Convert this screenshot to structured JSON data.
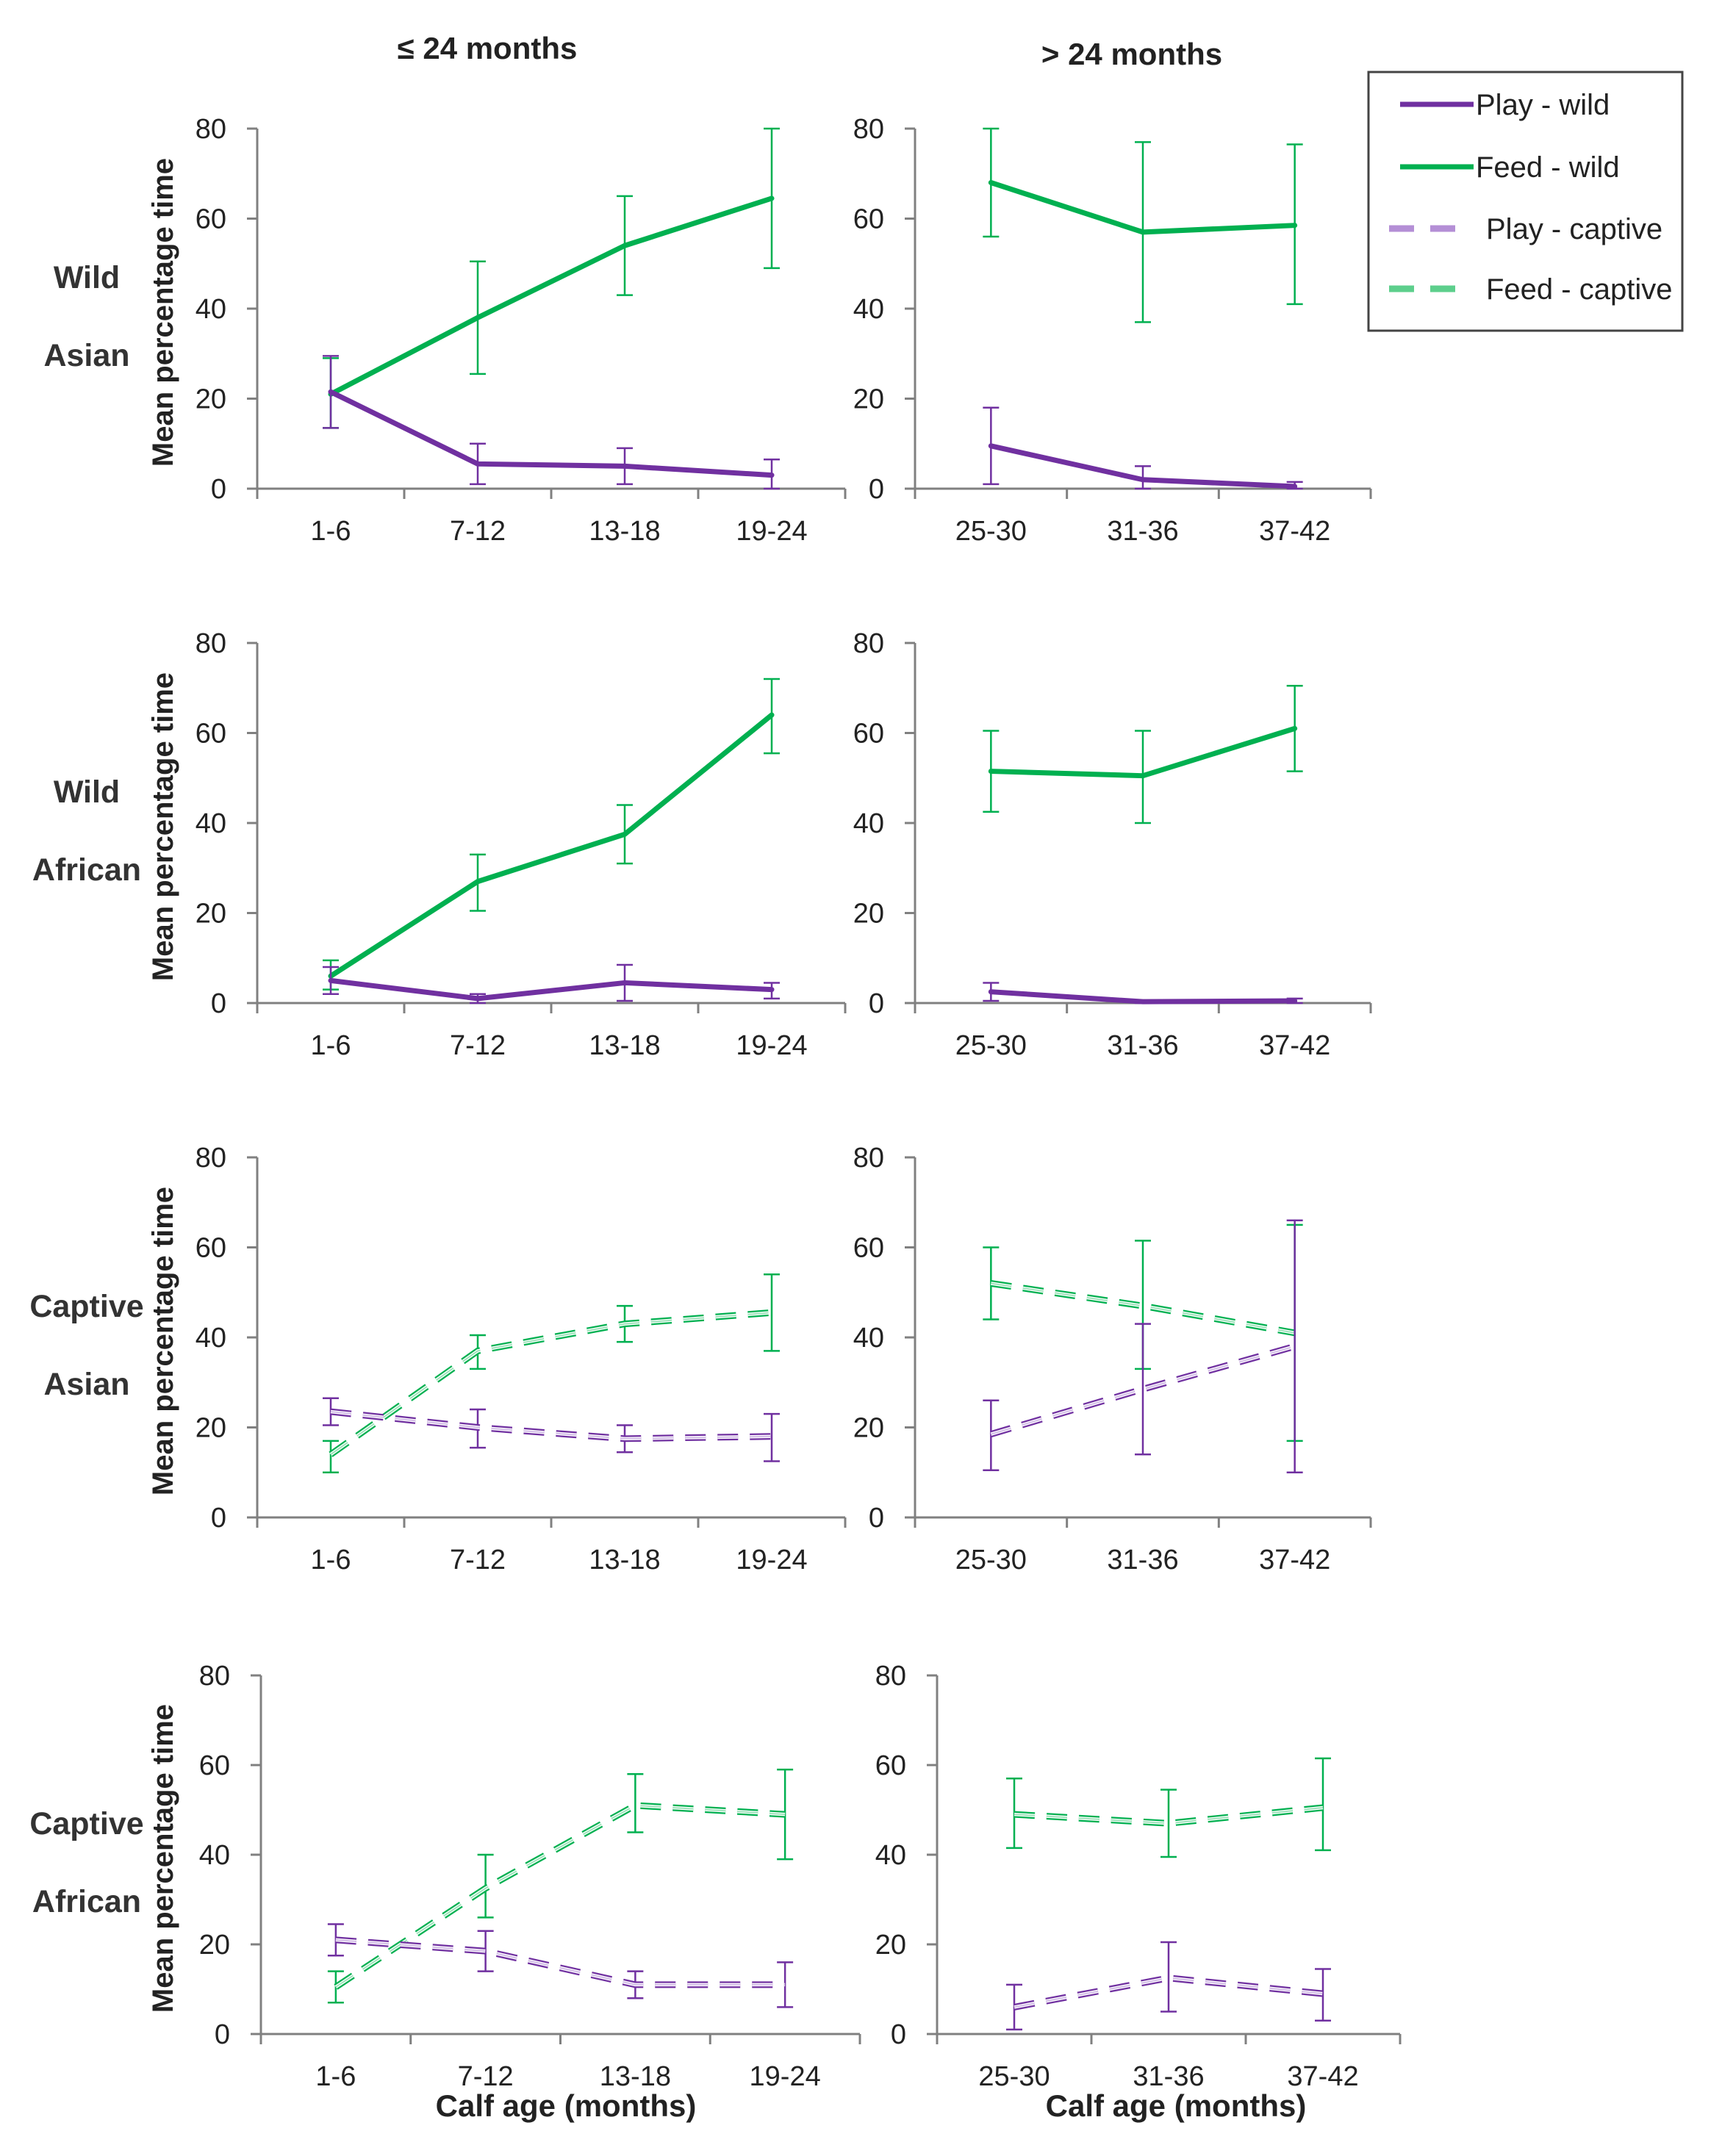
{
  "chart_data": {
    "type": "line",
    "column_headers": [
      "≤ 24 months",
      "> 24 months"
    ],
    "ylabel": "Mean percentage time",
    "xlabel": "Calf age (months)",
    "ylim": [
      0,
      80
    ],
    "yticks": [
      "0",
      "20",
      "40",
      "60",
      "80"
    ],
    "colors": {
      "play": "#7030a0",
      "feed": "#00b050",
      "play_captive": "#b48fd6",
      "feed_captive": "#5dcf8c"
    },
    "legend": {
      "position": "top-right",
      "entries": [
        {
          "label": "Play - wild",
          "series": "play",
          "style": "solid"
        },
        {
          "label": "Feed - wild",
          "series": "feed",
          "style": "solid"
        },
        {
          "label": "Play - captive",
          "series": "play",
          "style": "dashed"
        },
        {
          "label": "Feed - captive",
          "series": "feed",
          "style": "dashed"
        }
      ]
    },
    "panels": [
      {
        "row": 0,
        "col": 0,
        "row_label": [
          "Wild",
          "Asian"
        ],
        "style": "solid",
        "categories": [
          "1-6",
          "7-12",
          "13-18",
          "19-24"
        ],
        "series": [
          {
            "name": "Feed - wild",
            "kind": "feed",
            "values": [
              21,
              38,
              54,
              64.5
            ],
            "err_low": [
              13.5,
              25.5,
              43,
              49
            ],
            "err_high": [
              29,
              50.5,
              65,
              80
            ]
          },
          {
            "name": "Play - wild",
            "kind": "play",
            "values": [
              21.5,
              5.5,
              5,
              3
            ],
            "err_low": [
              13.5,
              1,
              1,
              0
            ],
            "err_high": [
              29.5,
              10,
              9,
              6.5
            ]
          }
        ]
      },
      {
        "row": 0,
        "col": 1,
        "style": "solid",
        "categories": [
          "25-30",
          "31-36",
          "37-42"
        ],
        "series": [
          {
            "name": "Feed - wild",
            "kind": "feed",
            "values": [
              68,
              57,
              58.5
            ],
            "err_low": [
              56,
              37,
              41
            ],
            "err_high": [
              80,
              77,
              76.5
            ]
          },
          {
            "name": "Play - wild",
            "kind": "play",
            "values": [
              9.5,
              2,
              0.5
            ],
            "err_low": [
              1,
              0,
              0
            ],
            "err_high": [
              18,
              5,
              1.5
            ]
          }
        ]
      },
      {
        "row": 1,
        "col": 0,
        "row_label": [
          "Wild",
          "African"
        ],
        "style": "solid",
        "categories": [
          "1-6",
          "7-12",
          "13-18",
          "19-24"
        ],
        "series": [
          {
            "name": "Feed - wild",
            "kind": "feed",
            "values": [
              6,
              27,
              37.5,
              64
            ],
            "err_low": [
              3,
              20.5,
              31,
              55.5
            ],
            "err_high": [
              9.5,
              33,
              44,
              72
            ]
          },
          {
            "name": "Play - wild",
            "kind": "play",
            "values": [
              5,
              1,
              4.5,
              3
            ],
            "err_low": [
              2,
              0,
              0.5,
              1
            ],
            "err_high": [
              8,
              2,
              8.5,
              4.5
            ]
          }
        ]
      },
      {
        "row": 1,
        "col": 1,
        "style": "solid",
        "categories": [
          "25-30",
          "31-36",
          "37-42"
        ],
        "series": [
          {
            "name": "Feed - wild",
            "kind": "feed",
            "values": [
              51.5,
              50.5,
              61
            ],
            "err_low": [
              42.5,
              40,
              51.5
            ],
            "err_high": [
              60.5,
              60.5,
              70.5
            ]
          },
          {
            "name": "Play - wild",
            "kind": "play",
            "values": [
              2.5,
              0.3,
              0.5
            ],
            "err_low": [
              0.5,
              0,
              0
            ],
            "err_high": [
              4.5,
              0.5,
              1
            ]
          }
        ]
      },
      {
        "row": 2,
        "col": 0,
        "row_label": [
          "Captive",
          "Asian"
        ],
        "style": "dashed",
        "categories": [
          "1-6",
          "7-12",
          "13-18",
          "19-24"
        ],
        "series": [
          {
            "name": "Feed - captive",
            "kind": "feed",
            "values": [
              14,
              37,
              43,
              45.5
            ],
            "err_low": [
              10,
              33,
              39,
              37
            ],
            "err_high": [
              17,
              40.5,
              47,
              54
            ]
          },
          {
            "name": "Play - captive",
            "kind": "play",
            "values": [
              23.5,
              20,
              17.5,
              18
            ],
            "err_low": [
              20.5,
              15.5,
              14.5,
              12.5
            ],
            "err_high": [
              26.5,
              24,
              20.5,
              23
            ]
          }
        ]
      },
      {
        "row": 2,
        "col": 1,
        "style": "dashed",
        "categories": [
          "25-30",
          "31-36",
          "37-42"
        ],
        "series": [
          {
            "name": "Feed - captive",
            "kind": "feed",
            "values": [
              52,
              47,
              41
            ],
            "err_low": [
              44,
              33,
              17
            ],
            "err_high": [
              60,
              61.5,
              65
            ]
          },
          {
            "name": "Play - captive",
            "kind": "play",
            "values": [
              18.5,
              28.5,
              38
            ],
            "err_low": [
              10.5,
              14,
              10
            ],
            "err_high": [
              26,
              43,
              66
            ]
          }
        ]
      },
      {
        "row": 3,
        "col": 0,
        "row_label": [
          "Captive",
          "African"
        ],
        "style": "dashed",
        "categories": [
          "1-6",
          "7-12",
          "13-18",
          "19-24"
        ],
        "series": [
          {
            "name": "Feed - captive",
            "kind": "feed",
            "values": [
              10.5,
              32.5,
              51,
              49
            ],
            "err_low": [
              7,
              26,
              45,
              39
            ],
            "err_high": [
              14,
              40,
              58,
              59
            ]
          },
          {
            "name": "Play - captive",
            "kind": "play",
            "values": [
              21,
              18.5,
              11,
              11
            ],
            "err_low": [
              17.5,
              14,
              8,
              6
            ],
            "err_high": [
              24.5,
              23,
              14,
              16
            ]
          }
        ]
      },
      {
        "row": 3,
        "col": 1,
        "style": "dashed",
        "categories": [
          "25-30",
          "31-36",
          "37-42"
        ],
        "series": [
          {
            "name": "Feed - captive",
            "kind": "feed",
            "values": [
              49,
              47,
              50.5
            ],
            "err_low": [
              41.5,
              39.5,
              41
            ],
            "err_high": [
              57,
              54.5,
              61.5
            ]
          },
          {
            "name": "Play - captive",
            "kind": "play",
            "values": [
              6,
              12.5,
              9
            ],
            "err_low": [
              1,
              5,
              3
            ],
            "err_high": [
              11,
              20.5,
              14.5
            ]
          }
        ]
      }
    ]
  }
}
